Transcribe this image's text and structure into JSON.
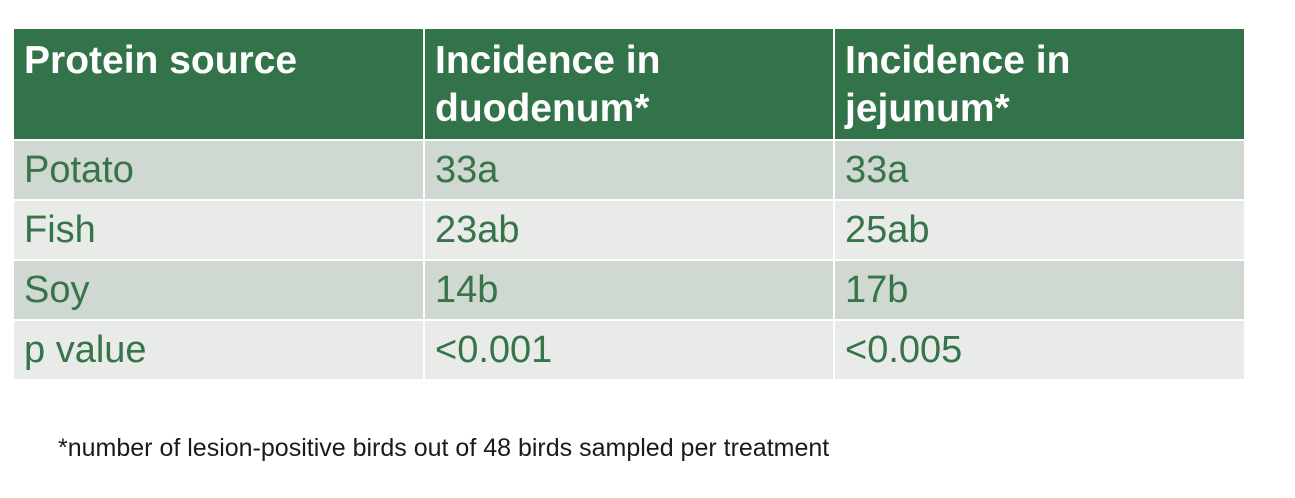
{
  "table": {
    "headers": [
      "Protein source",
      "Incidence in duodenum*",
      "Incidence in jejunum*"
    ],
    "rows": [
      [
        "Potato",
        "33a",
        "33a"
      ],
      [
        "Fish",
        "23ab",
        "25ab"
      ],
      [
        "Soy",
        "14b",
        "17b"
      ],
      [
        "p value",
        "<0.001",
        "<0.005"
      ]
    ]
  },
  "footnote": "*number of lesion-positive birds out of 48 birds sampled per treatment",
  "colors": {
    "header_bg": "#33734a",
    "header_text": "#ffffff",
    "body_text": "#37744a",
    "row_odd": "#cfd8d1",
    "row_even": "#e9ebe9"
  }
}
